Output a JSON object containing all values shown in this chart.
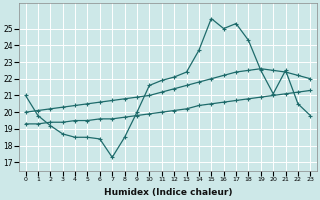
{
  "xlabel": "Humidex (Indice chaleur)",
  "ylim": [
    16.5,
    26.5
  ],
  "xlim": [
    -0.5,
    23.5
  ],
  "yticks": [
    17,
    18,
    19,
    20,
    21,
    22,
    23,
    24,
    25
  ],
  "x_ticks": [
    0,
    1,
    2,
    3,
    4,
    5,
    6,
    7,
    8,
    9,
    10,
    11,
    12,
    13,
    14,
    15,
    16,
    17,
    18,
    19,
    20,
    21,
    22,
    23
  ],
  "background_color": "#cde8e8",
  "grid_color": "#b0d0d0",
  "line_color": "#1e6b6b",
  "line1_x": [
    0,
    1,
    2,
    3,
    4,
    5,
    6,
    7,
    8,
    9,
    10,
    11,
    12,
    13,
    14,
    15,
    16,
    17,
    18,
    19,
    20,
    21,
    22,
    23
  ],
  "line1_y": [
    21.0,
    19.8,
    19.2,
    18.7,
    18.5,
    18.5,
    18.4,
    17.3,
    18.5,
    20.0,
    21.6,
    21.9,
    22.1,
    22.4,
    23.7,
    25.6,
    25.0,
    25.3,
    24.3,
    22.5,
    21.1,
    22.5,
    20.5,
    19.8
  ],
  "line2_x": [
    0,
    1,
    2,
    3,
    4,
    5,
    6,
    7,
    8,
    9,
    10,
    11,
    12,
    13,
    14,
    15,
    16,
    17,
    18,
    19,
    20,
    21,
    22,
    23
  ],
  "line2_y": [
    20.0,
    20.1,
    20.2,
    20.3,
    20.4,
    20.5,
    20.6,
    20.7,
    20.8,
    20.9,
    21.0,
    21.2,
    21.4,
    21.6,
    21.8,
    22.0,
    22.2,
    22.4,
    22.5,
    22.6,
    22.5,
    22.4,
    22.2,
    22.0
  ],
  "line3_x": [
    0,
    1,
    2,
    3,
    4,
    5,
    6,
    7,
    8,
    9,
    10,
    11,
    12,
    13,
    14,
    15,
    16,
    17,
    18,
    19,
    20,
    21,
    22,
    23
  ],
  "line3_y": [
    19.3,
    19.3,
    19.4,
    19.4,
    19.5,
    19.5,
    19.6,
    19.6,
    19.7,
    19.8,
    19.9,
    20.0,
    20.1,
    20.2,
    20.4,
    20.5,
    20.6,
    20.7,
    20.8,
    20.9,
    21.0,
    21.1,
    21.2,
    21.3
  ]
}
